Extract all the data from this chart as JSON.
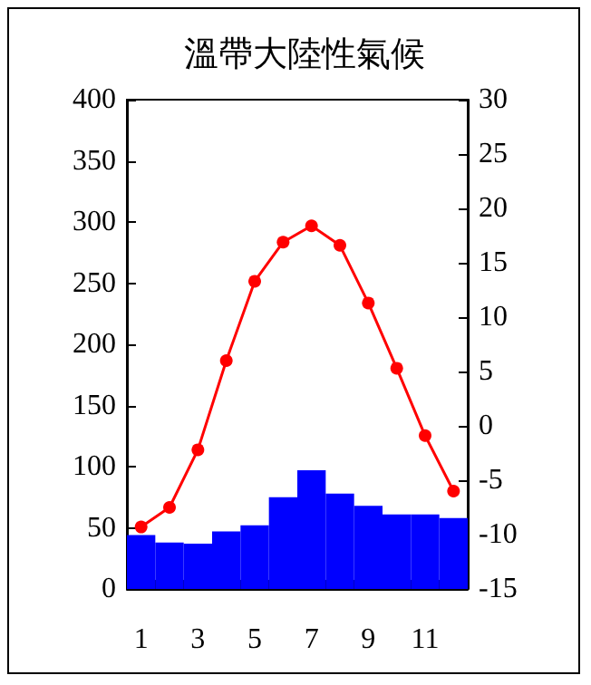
{
  "chart_data": {
    "type": "bar",
    "title": "溫帶大陸性氣候",
    "categories": [
      "1",
      null,
      "3",
      null,
      "5",
      null,
      "7",
      null,
      "9",
      null,
      "11",
      null
    ],
    "series": [
      {
        "color": "#0000ff",
        "values": [
          44,
          38,
          37,
          47,
          52,
          75,
          97,
          78,
          68,
          61,
          61,
          58
        ]
      },
      {
        "type": "line",
        "axis": "y2",
        "color": "#ff0000",
        "marker": "circle",
        "values": [
          -9.3,
          -7.5,
          -2.2,
          6,
          13.3,
          16.9,
          18.4,
          16.6,
          11.3,
          5.3,
          -0.9,
          -6
        ]
      }
    ],
    "ylim": [
      0,
      400
    ],
    "yticks": [
      0,
      50,
      100,
      150,
      200,
      250,
      300,
      350,
      400
    ],
    "y2lim": [
      -15,
      30
    ],
    "y2ticks": [
      -15,
      -10,
      -5,
      0,
      5,
      10,
      15,
      20,
      25,
      30
    ],
    "grid": false
  }
}
